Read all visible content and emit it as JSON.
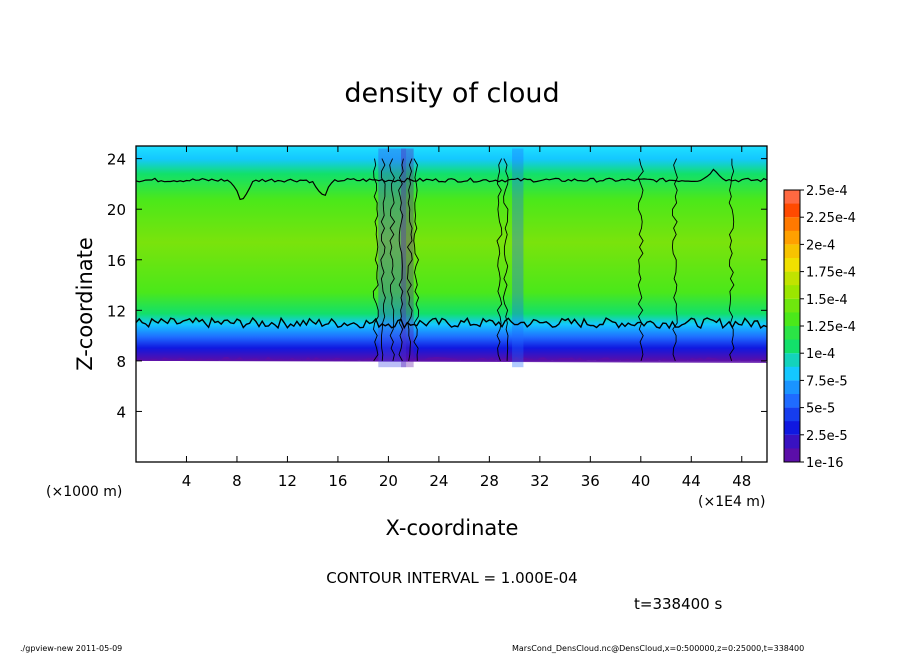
{
  "chart_data": {
    "type": "heatmap",
    "title": "density of cloud",
    "xlabel": "X-coordinate",
    "ylabel": "Z-coordinate",
    "x_unit_label": "(×1E4 m)",
    "y_unit_label": "(×1000 m)",
    "xlim": [
      0,
      50
    ],
    "ylim": [
      0,
      25
    ],
    "x_ticks": [
      4,
      8,
      12,
      16,
      20,
      24,
      28,
      32,
      36,
      40,
      44,
      48
    ],
    "y_ticks": [
      4,
      8,
      12,
      16,
      20,
      24
    ],
    "colorbar": {
      "labels": [
        "1e-16",
        "2.5e-5",
        "5e-5",
        "7.5e-5",
        "1e-4",
        "1.25e-4",
        "1.5e-4",
        "1.75e-4",
        "2e-4",
        "2.25e-4",
        "2.5e-4"
      ],
      "colors": [
        "#5b0ea8",
        "#1018e0",
        "#1f6bff",
        "#14c8ff",
        "#12e06a",
        "#4be81a",
        "#9be600",
        "#f0e000",
        "#ffa000",
        "#ff4a00",
        "#ff9090"
      ]
    },
    "cloud_band_z": {
      "bottom": 8,
      "contour_low": 11,
      "contour_high": 22.3,
      "top": 24.5
    },
    "contour_interval_text": "CONTOUR INTERVAL = 1.000E-04",
    "time_text": "t=338400 s"
  },
  "footer": {
    "left": "./gpview-new   2011-05-09",
    "right": "MarsCond_DensCloud.nc@DensCloud,x=0:500000,z=0:25000,t=338400"
  }
}
